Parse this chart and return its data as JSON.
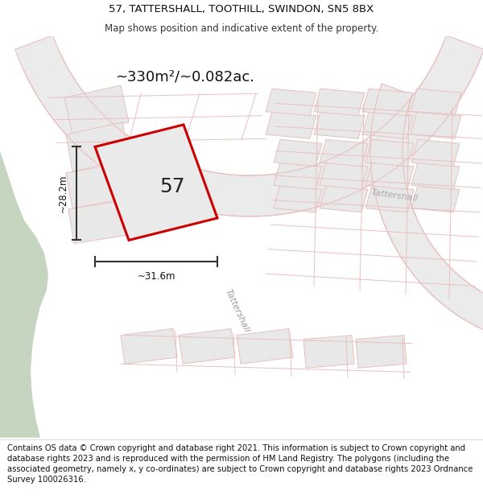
{
  "title_line1": "57, TATTERSHALL, TOOTHILL, SWINDON, SN5 8BX",
  "title_line2": "Map shows position and indicative extent of the property.",
  "footer_text": "Contains OS data © Crown copyright and database right 2021. This information is subject to Crown copyright and database rights 2023 and is reproduced with the permission of HM Land Registry. The polygons (including the associated geometry, namely x, y co-ordinates) are subject to Crown copyright and database rights 2023 Ordnance Survey 100026316.",
  "area_text": "~330m²/~0.082ac.",
  "label_57": "57",
  "dim_width": "~31.6m",
  "dim_height": "~28.2m",
  "road_label_diag": "Tattershall",
  "road_label_right": "Tattershall",
  "map_bg": "#f2f2f2",
  "green_color": "#c5d5c0",
  "plot_fill": "#e8e8e8",
  "plot_edge": "#e8c0c0",
  "road_fill": "#f8f8f8",
  "highlight_color": "#cc0000",
  "dim_color": "#333333",
  "title_fontsize": 9.5,
  "subtitle_fontsize": 8.5,
  "footer_fontsize": 7.2,
  "area_fontsize": 13,
  "label_fontsize": 18,
  "dim_fontsize": 8.5,
  "road_fontsize": 8
}
